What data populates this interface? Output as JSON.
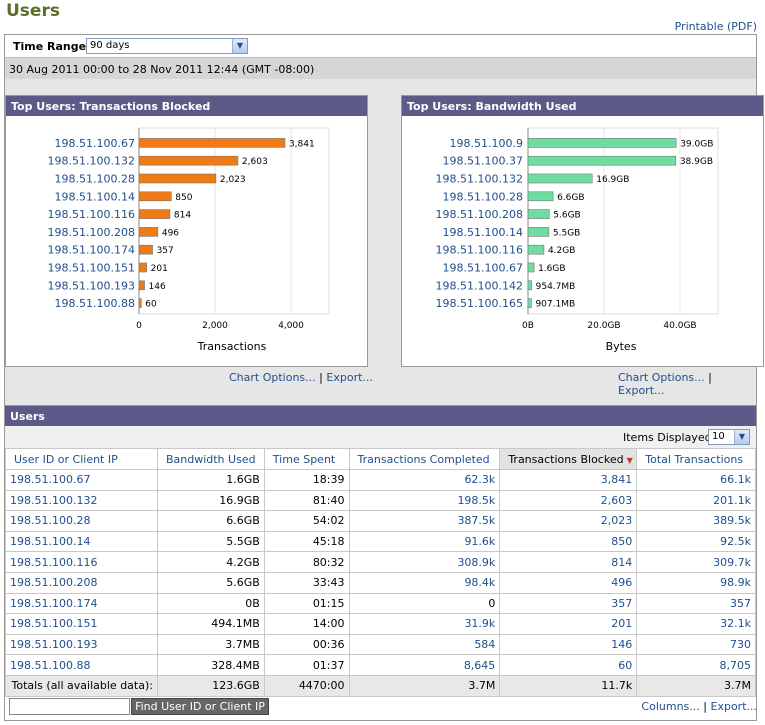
{
  "page": {
    "title": "Users",
    "printable": "Printable (PDF)"
  },
  "time_range": {
    "label": "Time Range:",
    "value": "90 days",
    "date_text": "30 Aug 2011 00:00 to 28 Nov 2011 12:44 (GMT -08:00)"
  },
  "chart_links": {
    "options": "Chart Options...",
    "separator": "|",
    "export": "Export..."
  },
  "chart_data": [
    {
      "type": "bar",
      "orientation": "horizontal",
      "title": "Top Users: Transactions Blocked",
      "xlabel": "Transactions",
      "categories": [
        "198.51.100.67",
        "198.51.100.132",
        "198.51.100.28",
        "198.51.100.14",
        "198.51.100.116",
        "198.51.100.208",
        "198.51.100.174",
        "198.51.100.151",
        "198.51.100.193",
        "198.51.100.88"
      ],
      "values": [
        3841,
        2603,
        2023,
        850,
        814,
        496,
        357,
        201,
        146,
        60
      ],
      "value_labels": [
        "3,841",
        "2,603",
        "2,023",
        "850",
        "814",
        "496",
        "357",
        "201",
        "146",
        "60"
      ],
      "xlim": [
        0,
        5000
      ],
      "ticks": [
        "0",
        "2,000",
        "4,000"
      ],
      "tick_values": [
        0,
        2000,
        4000
      ],
      "color": "#f07b16"
    },
    {
      "type": "bar",
      "orientation": "horizontal",
      "title": "Top Users: Bandwidth Used",
      "xlabel": "Bytes",
      "categories": [
        "198.51.100.9",
        "198.51.100.37",
        "198.51.100.132",
        "198.51.100.28",
        "198.51.100.208",
        "198.51.100.14",
        "198.51.100.116",
        "198.51.100.67",
        "198.51.100.142",
        "198.51.100.165"
      ],
      "values": [
        39.0,
        38.9,
        16.9,
        6.6,
        5.6,
        5.5,
        4.2,
        1.6,
        0.9547,
        0.9071
      ],
      "unit": "GB",
      "value_labels": [
        "39.0GB",
        "38.9GB",
        "16.9GB",
        "6.6GB",
        "5.6GB",
        "5.5GB",
        "4.2GB",
        "1.6GB",
        "954.7MB",
        "907.1MB"
      ],
      "xlim": [
        0,
        50
      ],
      "ticks": [
        "0B",
        "20.0GB",
        "40.0GB"
      ],
      "tick_values": [
        0,
        20,
        40
      ],
      "color": "#6fdca0"
    }
  ],
  "users_panel": {
    "title": "Users",
    "items_label": "Items Displayed",
    "items_value": "10",
    "columns": [
      "User ID or Client IP",
      "Bandwidth Used",
      "Time Spent",
      "Transactions Completed",
      "Transactions Blocked",
      "Total Transactions"
    ],
    "rows": [
      [
        "198.51.100.67",
        "1.6GB",
        "18:39",
        "62.3k",
        "3,841",
        "66.1k"
      ],
      [
        "198.51.100.132",
        "16.9GB",
        "81:40",
        "198.5k",
        "2,603",
        "201.1k"
      ],
      [
        "198.51.100.28",
        "6.6GB",
        "54:02",
        "387.5k",
        "2,023",
        "389.5k"
      ],
      [
        "198.51.100.14",
        "5.5GB",
        "45:18",
        "91.6k",
        "850",
        "92.5k"
      ],
      [
        "198.51.100.116",
        "4.2GB",
        "80:32",
        "308.9k",
        "814",
        "309.7k"
      ],
      [
        "198.51.100.208",
        "5.6GB",
        "33:43",
        "98.4k",
        "496",
        "98.9k"
      ],
      [
        "198.51.100.174",
        "0B",
        "01:15",
        "0",
        "357",
        "357"
      ],
      [
        "198.51.100.151",
        "494.1MB",
        "14:00",
        "31.9k",
        "201",
        "32.1k"
      ],
      [
        "198.51.100.193",
        "3.7MB",
        "00:36",
        "584",
        "146",
        "730"
      ],
      [
        "198.51.100.88",
        "328.4MB",
        "01:37",
        "8,645",
        "60",
        "8,705"
      ]
    ],
    "totals": [
      "Totals (all available data):",
      "123.6GB",
      "4470:00",
      "3.7M",
      "11.7k",
      "3.7M"
    ]
  },
  "find": {
    "placeholder": "",
    "button": "Find User ID or Client IP"
  },
  "bottom_links": {
    "columns": "Columns...",
    "separator": "|",
    "export": "Export..."
  }
}
